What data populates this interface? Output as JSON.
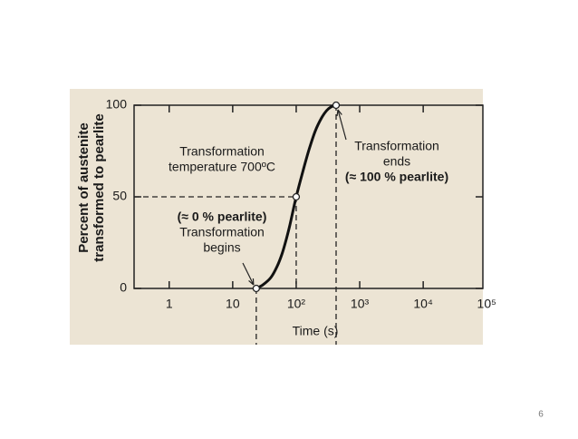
{
  "chart_data": {
    "type": "line",
    "y_label": [
      "Percent of austenite",
      "transformed to pearlite"
    ],
    "x_label": "Time (s)",
    "x_scale": "log",
    "x": [
      23.5,
      30,
      40,
      50,
      60,
      70,
      80,
      100,
      130,
      160,
      200,
      250,
      300,
      350,
      425
    ],
    "series": [
      {
        "color": "#111111",
        "values": [
          0,
          2,
          6,
          12,
          19,
          27,
          35,
          50,
          65,
          76,
          86,
          93,
          97,
          99,
          100
        ]
      }
    ],
    "xlim": [
      0.28,
      87000
    ],
    "xticks": [
      1,
      10,
      {
        "value": 100,
        "label": "10²"
      },
      {
        "value": 1000,
        "label": "10³"
      },
      {
        "value": 10000,
        "label": "10⁴"
      },
      {
        "value": 100000,
        "label": "10⁵"
      }
    ],
    "ylim": [
      0,
      100
    ],
    "yticks": [
      0,
      50,
      100
    ],
    "annotations": [
      {
        "lines": [
          "Transformation",
          "temperature 700ºC"
        ]
      },
      {
        "lines": [
          "(≈ 0 % pearlite)",
          "Transformation",
          "begins"
        ]
      },
      {
        "lines": [
          "Transformation",
          "ends",
          "(≈ 100 % pearlite)"
        ]
      }
    ]
  },
  "page_number": "6"
}
